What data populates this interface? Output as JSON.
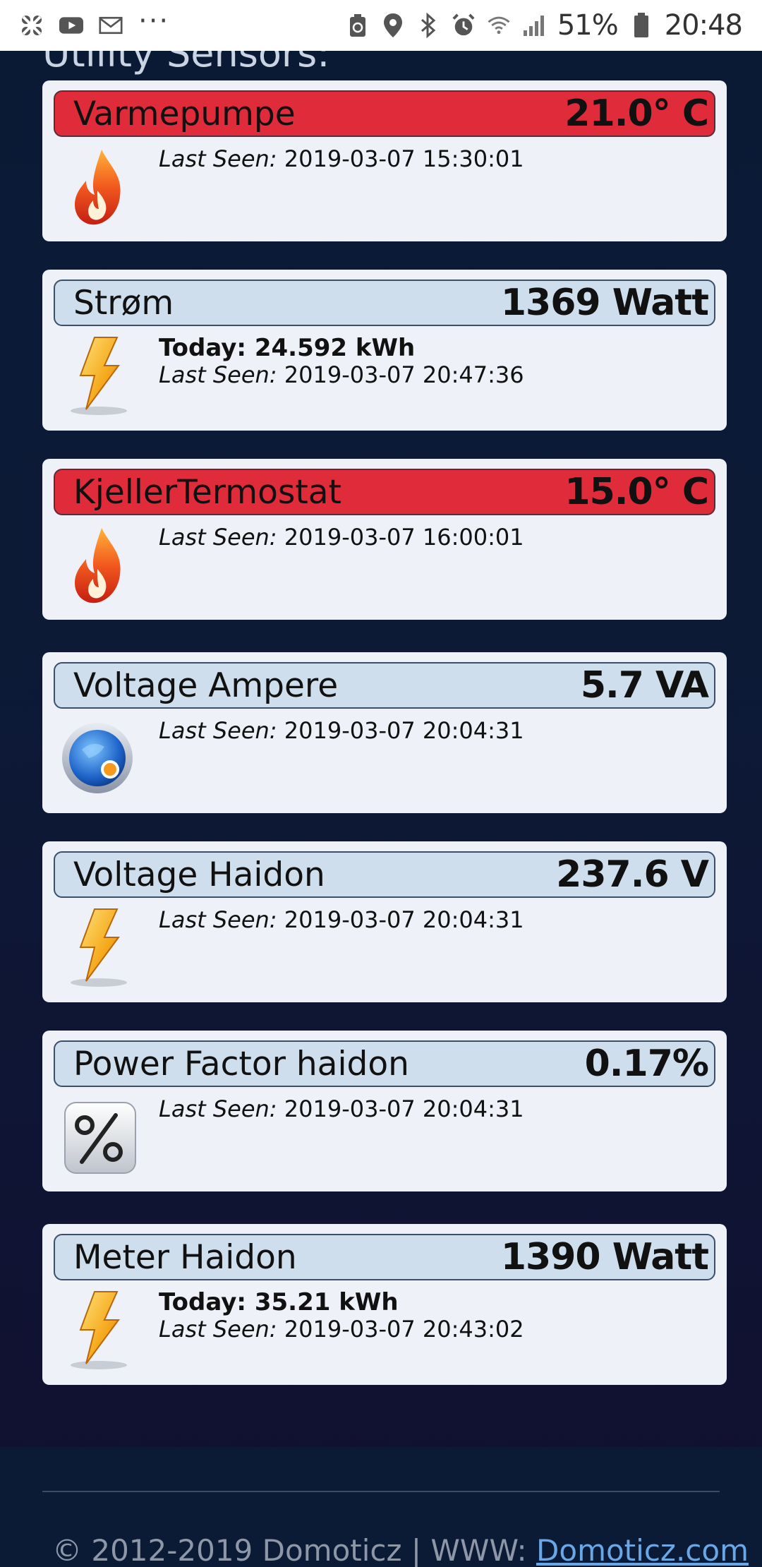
{
  "status_bar": {
    "battery": "51%",
    "time": "20:48",
    "icons_left": [
      "app-icon",
      "youtube-icon",
      "mail-icon",
      "more-icon"
    ],
    "icons_right": [
      "battery-saver-icon",
      "location-icon",
      "bluetooth-icon",
      "alarm-icon",
      "wifi-icon",
      "signal-icon",
      "battery-icon"
    ]
  },
  "section": {
    "title": "Utility Sensors:"
  },
  "devices": [
    {
      "name": "Varmepumpe",
      "value": "21.0° C",
      "today": "",
      "seen_label": "Last Seen:",
      "seen": "2019-03-07 15:30:01",
      "icon": "flame-icon",
      "state": "alert"
    },
    {
      "name": "Strøm",
      "value": "1369 Watt",
      "today": "Today: 24.592 kWh",
      "seen_label": "Last Seen:",
      "seen": "2019-03-07 20:47:36",
      "icon": "lightning-icon",
      "state": "normal"
    },
    {
      "name": "KjellerTermostat",
      "value": "15.0° C",
      "today": "",
      "seen_label": "Last Seen:",
      "seen": "2019-03-07 16:00:01",
      "icon": "flame-icon",
      "state": "alert"
    },
    {
      "name": "Voltage Ampere",
      "value": "5.7 VA",
      "today": "",
      "seen_label": "Last Seen:",
      "seen": "2019-03-07 20:04:31",
      "icon": "custom-sensor-icon",
      "state": "normal"
    },
    {
      "name": "Voltage Haidon",
      "value": "237.6 V",
      "today": "",
      "seen_label": "Last Seen:",
      "seen": "2019-03-07 20:04:31",
      "icon": "lightning-icon",
      "state": "normal"
    },
    {
      "name": "Power Factor haidon",
      "value": "0.17%",
      "today": "",
      "seen_label": "Last Seen:",
      "seen": "2019-03-07 20:04:31",
      "icon": "percent-icon",
      "state": "normal"
    },
    {
      "name": "Meter Haidon",
      "value": "1390 Watt",
      "today": "Today: 35.21 kWh",
      "seen_label": "Last Seen:",
      "seen": "2019-03-07 20:43:02",
      "icon": "lightning-icon",
      "state": "normal"
    }
  ],
  "footer": {
    "copyright": "© 2012-2019 Domoticz | WWW: ",
    "link_text": "Domoticz.com"
  },
  "colors": {
    "alert_header": "#e02b3b",
    "normal_header": "#cfdeed",
    "card_bg": "#eef2f8",
    "page_bg": "#0c1a36",
    "link": "#6aa7e6"
  }
}
